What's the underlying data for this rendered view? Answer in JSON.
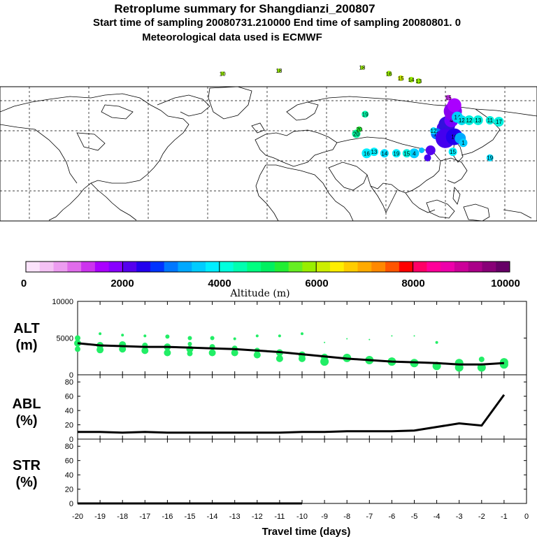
{
  "header": {
    "title": "Retroplume summary for Shangdianzi_200807",
    "subtitle": "Start time of sampling 20080731.210000      End time of sampling 20080801.      0",
    "met": "Meteorological data used is ECMWF"
  },
  "colorbar": {
    "colors": [
      "#fbe3fb",
      "#f4c2f4",
      "#ec9cf0",
      "#e06ceb",
      "#cc33ee",
      "#aa00ff",
      "#8800ff",
      "#5500ee",
      "#2200ee",
      "#0033ff",
      "#0077ff",
      "#00a8ff",
      "#00ccff",
      "#00eeff",
      "#00ffdd",
      "#00ffb0",
      "#00ff80",
      "#00f060",
      "#22ee33",
      "#66ee22",
      "#99ee00",
      "#ccee00",
      "#ffee00",
      "#ffcc00",
      "#ffaa00",
      "#ff8800",
      "#ff5500",
      "#ff0000",
      "#ff0066",
      "#ff0099",
      "#ee00aa",
      "#cc0099",
      "#aa0088",
      "#880077",
      "#660066"
    ],
    "ticks": [
      "0",
      "2000",
      "4000",
      "6000",
      "8000",
      "10000"
    ],
    "label": "Altitude (m)"
  },
  "map": {
    "markers": [
      {
        "lon": 118,
        "lat": 22,
        "r": 8,
        "color": "#5500ee",
        "label": ""
      },
      {
        "lon": 121,
        "lat": 24,
        "r": 12,
        "color": "#3311dd",
        "label": ""
      },
      {
        "lon": 124,
        "lat": 27,
        "r": 10,
        "color": "#7700ff",
        "label": "4"
      },
      {
        "lon": 125,
        "lat": 33,
        "r": 13,
        "color": "#8800ee",
        "label": ""
      },
      {
        "lon": 126,
        "lat": 37,
        "r": 10,
        "color": "#aa00ff",
        "label": ""
      },
      {
        "lon": 128,
        "lat": 29,
        "r": 8,
        "color": "#00ccff",
        "label": "14"
      },
      {
        "lon": 131,
        "lat": 27,
        "r": 7,
        "color": "#00ddee",
        "label": "12"
      },
      {
        "lon": 136,
        "lat": 27,
        "r": 7,
        "color": "#00eedd",
        "label": "12"
      },
      {
        "lon": 142,
        "lat": 27,
        "r": 7,
        "color": "#00eedd",
        "label": "13"
      },
      {
        "lon": 150,
        "lat": 27,
        "r": 6,
        "color": "#00eedd",
        "label": "11"
      },
      {
        "lon": 156,
        "lat": 26,
        "r": 7,
        "color": "#00eedd",
        "label": "17"
      },
      {
        "lon": 114,
        "lat": 18,
        "r": 8,
        "color": "#0077ff",
        "label": "11"
      },
      {
        "lon": 120,
        "lat": 15,
        "r": 14,
        "color": "#4400ee",
        "label": ""
      },
      {
        "lon": 126,
        "lat": 16,
        "r": 12,
        "color": "#2200ee",
        "label": "10"
      },
      {
        "lon": 130,
        "lat": 15,
        "r": 8,
        "color": "#00aaff",
        "label": ""
      },
      {
        "lon": 132,
        "lat": 12,
        "r": 6,
        "color": "#00ccff",
        "label": "1"
      },
      {
        "lon": 125,
        "lat": 6,
        "r": 6,
        "color": "#00eeff",
        "label": "15"
      },
      {
        "lon": 112,
        "lat": 20,
        "r": 5,
        "color": "#00ddff",
        "label": "12"
      },
      {
        "lon": 110,
        "lat": 7,
        "r": 7,
        "color": "#5500ee",
        "label": ""
      },
      {
        "lon": 99,
        "lat": 5,
        "r": 7,
        "color": "#00ccff",
        "label": "4"
      },
      {
        "lon": 94,
        "lat": 5,
        "r": 6,
        "color": "#00eedd",
        "label": "15"
      },
      {
        "lon": 87,
        "lat": 5,
        "r": 6,
        "color": "#00eeff",
        "label": "19"
      },
      {
        "lon": 79,
        "lat": 5,
        "r": 6,
        "color": "#00ddff",
        "label": "14"
      },
      {
        "lon": 72,
        "lat": 6,
        "r": 6,
        "color": "#00eeff",
        "label": "13"
      },
      {
        "lon": 67,
        "lat": 5,
        "r": 7,
        "color": "#00eeff",
        "label": "16"
      },
      {
        "lon": 60,
        "lat": 18,
        "r": 6,
        "color": "#00ee99",
        "label": "20"
      },
      {
        "lon": 62,
        "lat": 21,
        "r": 4,
        "color": "#22ee33",
        "label": "20"
      },
      {
        "lon": 66,
        "lat": 31,
        "r": 5,
        "color": "#00ffb0",
        "label": "19"
      },
      {
        "lon": 150,
        "lat": 2,
        "r": 5,
        "color": "#00ddff",
        "label": "19"
      },
      {
        "lon": 108,
        "lat": 2,
        "r": 5,
        "color": "#4400ee",
        "label": ""
      },
      {
        "lon": 104,
        "lat": 7,
        "r": 4,
        "color": "#00bbff",
        "label": ""
      },
      {
        "lon": 122,
        "lat": 42,
        "r": 4,
        "color": "#cc33ee",
        "label": "15"
      },
      {
        "lon": 64,
        "lat": 62,
        "r": 3,
        "color": "#99ee00",
        "label": "18"
      },
      {
        "lon": 82,
        "lat": 58,
        "r": 4,
        "color": "#99ee00",
        "label": "16"
      },
      {
        "lon": 90,
        "lat": 55,
        "r": 4,
        "color": "#ccee00",
        "label": "15"
      },
      {
        "lon": 97,
        "lat": 54,
        "r": 4,
        "color": "#99ee00",
        "label": "14"
      },
      {
        "lon": 102,
        "lat": 53,
        "r": 4,
        "color": "#99ee00",
        "label": "13"
      },
      {
        "lon": 8,
        "lat": 60,
        "r": 3,
        "color": "#99ee00",
        "label": "18"
      },
      {
        "lon": -30,
        "lat": 58,
        "r": 3,
        "color": "#99ee00",
        "label": "10"
      }
    ]
  },
  "panels": {
    "alt_label": "ALT",
    "alt_unit": "(m)",
    "abl_label": "ABL",
    "abl_unit": "(%)",
    "str_label": "STR",
    "str_unit": "(%)"
  },
  "chart_data": [
    {
      "type": "line",
      "title": "ALT",
      "xlabel": "Travel time (days)",
      "ylabel": "(m)",
      "xlim": [
        -20,
        0
      ],
      "ylim": [
        0,
        10000
      ],
      "yticks": [
        "0",
        "5000",
        "10000"
      ],
      "x": [
        -20,
        -19,
        -18,
        -17,
        -16,
        -15,
        -14,
        -13,
        -12,
        -11,
        -10,
        -9,
        -8,
        -7,
        -6,
        -5,
        -4,
        -3,
        -2,
        -1
      ],
      "series": [
        {
          "name": "mean altitude",
          "values": [
            4300,
            4000,
            3900,
            3800,
            3800,
            3700,
            3600,
            3500,
            3300,
            3100,
            2800,
            2500,
            2200,
            2000,
            1800,
            1700,
            1600,
            1400,
            1400,
            1600
          ]
        }
      ],
      "scatter": [
        {
          "x": -20,
          "y": 5000,
          "s": 4
        },
        {
          "x": -20,
          "y": 4300,
          "s": 5
        },
        {
          "x": -20,
          "y": 3500,
          "s": 4
        },
        {
          "x": -19,
          "y": 5600,
          "s": 2
        },
        {
          "x": -19,
          "y": 4000,
          "s": 5
        },
        {
          "x": -19,
          "y": 3400,
          "s": 5
        },
        {
          "x": -18,
          "y": 5400,
          "s": 2
        },
        {
          "x": -18,
          "y": 4100,
          "s": 5
        },
        {
          "x": -18,
          "y": 3500,
          "s": 5
        },
        {
          "x": -17,
          "y": 5300,
          "s": 2
        },
        {
          "x": -17,
          "y": 4000,
          "s": 4
        },
        {
          "x": -17,
          "y": 3300,
          "s": 5
        },
        {
          "x": -16,
          "y": 5200,
          "s": 3
        },
        {
          "x": -16,
          "y": 3800,
          "s": 5
        },
        {
          "x": -16,
          "y": 3000,
          "s": 5
        },
        {
          "x": -15,
          "y": 5000,
          "s": 3
        },
        {
          "x": -15,
          "y": 4200,
          "s": 3
        },
        {
          "x": -15,
          "y": 3500,
          "s": 5
        },
        {
          "x": -15,
          "y": 2900,
          "s": 4
        },
        {
          "x": -14,
          "y": 5000,
          "s": 3
        },
        {
          "x": -14,
          "y": 3800,
          "s": 4
        },
        {
          "x": -14,
          "y": 3000,
          "s": 5
        },
        {
          "x": -13,
          "y": 4900,
          "s": 2
        },
        {
          "x": -13,
          "y": 3600,
          "s": 4
        },
        {
          "x": -13,
          "y": 3000,
          "s": 5
        },
        {
          "x": -12,
          "y": 5300,
          "s": 2
        },
        {
          "x": -12,
          "y": 3300,
          "s": 4
        },
        {
          "x": -12,
          "y": 2700,
          "s": 5
        },
        {
          "x": -11,
          "y": 5300,
          "s": 2
        },
        {
          "x": -11,
          "y": 3000,
          "s": 5
        },
        {
          "x": -11,
          "y": 2200,
          "s": 5
        },
        {
          "x": -10,
          "y": 5600,
          "s": 2
        },
        {
          "x": -10,
          "y": 2700,
          "s": 5
        },
        {
          "x": -10,
          "y": 2200,
          "s": 5
        },
        {
          "x": -9,
          "y": 4400,
          "s": 1
        },
        {
          "x": -9,
          "y": 2400,
          "s": 5
        },
        {
          "x": -9,
          "y": 1800,
          "s": 6
        },
        {
          "x": -8,
          "y": 4900,
          "s": 1
        },
        {
          "x": -8,
          "y": 2300,
          "s": 6
        },
        {
          "x": -7,
          "y": 4800,
          "s": 1
        },
        {
          "x": -7,
          "y": 2000,
          "s": 6
        },
        {
          "x": -6,
          "y": 5300,
          "s": 1
        },
        {
          "x": -6,
          "y": 1800,
          "s": 6
        },
        {
          "x": -5,
          "y": 5300,
          "s": 1
        },
        {
          "x": -5,
          "y": 1600,
          "s": 6
        },
        {
          "x": -4,
          "y": 4400,
          "s": 2
        },
        {
          "x": -4,
          "y": 1200,
          "s": 6
        },
        {
          "x": -3,
          "y": 1600,
          "s": 6
        },
        {
          "x": -3,
          "y": 1000,
          "s": 6
        },
        {
          "x": -2,
          "y": 2100,
          "s": 4
        },
        {
          "x": -2,
          "y": 1000,
          "s": 6
        },
        {
          "x": -1,
          "y": 1700,
          "s": 6
        },
        {
          "x": -1,
          "y": 1400,
          "s": 6
        }
      ]
    },
    {
      "type": "line",
      "title": "ABL",
      "ylabel": "(%)",
      "xlim": [
        -20,
        0
      ],
      "ylim": [
        0,
        90
      ],
      "yticks": [
        "0",
        "20",
        "40",
        "60",
        "80"
      ],
      "x": [
        -20,
        -19,
        -18,
        -17,
        -16,
        -15,
        -14,
        -13,
        -12,
        -11,
        -10,
        -9,
        -8,
        -7,
        -6,
        -5,
        -4,
        -3,
        -2,
        -1
      ],
      "series": [
        {
          "name": "ABL fraction",
          "values": [
            10,
            10,
            9,
            10,
            9,
            9,
            9,
            9,
            9,
            9,
            10,
            10,
            11,
            11,
            11,
            12,
            17,
            22,
            19,
            62
          ]
        }
      ]
    },
    {
      "type": "line",
      "title": "STR",
      "ylabel": "(%)",
      "xlabel": "Travel time (days)",
      "xlim": [
        -20,
        0
      ],
      "ylim": [
        0,
        90
      ],
      "yticks": [
        "0",
        "20",
        "40",
        "60",
        "80"
      ],
      "xticks": [
        "-20",
        "-19",
        "-18",
        "-17",
        "-16",
        "-15",
        "-14",
        "-13",
        "-12",
        "-11",
        "-10",
        "-9",
        "-8",
        "-7",
        "-6",
        "-5",
        "-4",
        "-3",
        "-2",
        "-1",
        "0"
      ],
      "x": [
        -20,
        -19,
        -18,
        -17,
        -16,
        -15,
        -14,
        -13,
        -12,
        -11,
        -10
      ],
      "series": [
        {
          "name": "stratospheric fraction",
          "values": [
            0,
            0,
            0,
            0,
            0,
            0,
            0,
            0,
            0,
            0,
            0
          ]
        }
      ]
    }
  ]
}
